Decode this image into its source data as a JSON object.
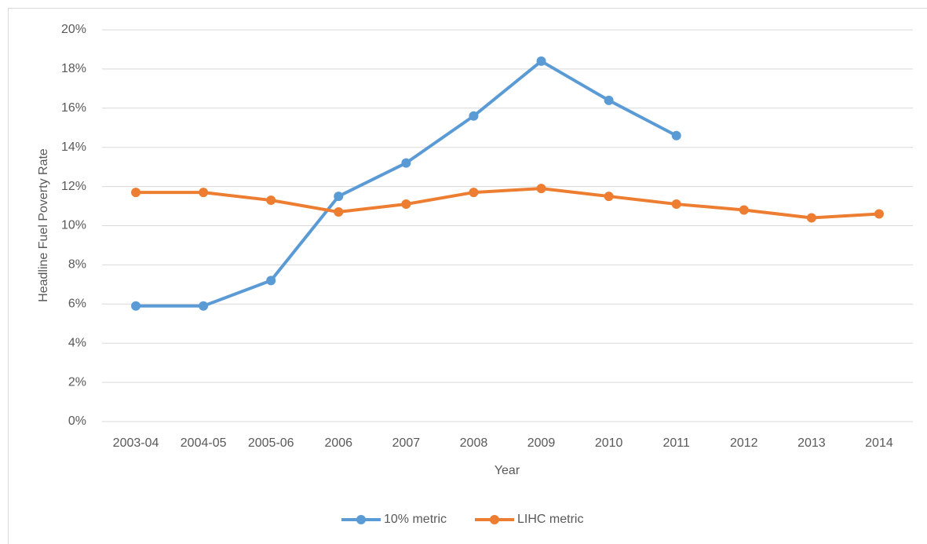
{
  "chart_data": {
    "type": "line",
    "x_label": "Year",
    "y_label": "Headline Fuel Poverty Rate",
    "categories": [
      "2003-04",
      "2004-05",
      "2005-06",
      "2006",
      "2007",
      "2008",
      "2009",
      "2010",
      "2011",
      "2012",
      "2013",
      "2014"
    ],
    "series": [
      {
        "name": "10% metric",
        "color": "#5b9bd5",
        "values": [
          5.9,
          5.9,
          7.2,
          11.5,
          13.2,
          15.6,
          18.4,
          16.4,
          14.6,
          null,
          null,
          null
        ]
      },
      {
        "name": "LIHC metric",
        "color": "#ed7d31",
        "values": [
          11.7,
          11.7,
          11.3,
          10.7,
          11.1,
          11.7,
          11.9,
          11.5,
          11.1,
          10.8,
          10.4,
          10.6
        ]
      }
    ],
    "ylim": [
      0,
      20
    ],
    "yticks": [
      {
        "value": 0,
        "label": "0%"
      },
      {
        "value": 2,
        "label": "2%"
      },
      {
        "value": 4,
        "label": "4%"
      },
      {
        "value": 6,
        "label": "6%"
      },
      {
        "value": 8,
        "label": "8%"
      },
      {
        "value": 10,
        "label": "10%"
      },
      {
        "value": 12,
        "label": "12%"
      },
      {
        "value": 14,
        "label": "14%"
      },
      {
        "value": 16,
        "label": "16%"
      },
      {
        "value": 18,
        "label": "18%"
      },
      {
        "value": 20,
        "label": "20%"
      }
    ],
    "grid": true,
    "legend": "bottom"
  }
}
